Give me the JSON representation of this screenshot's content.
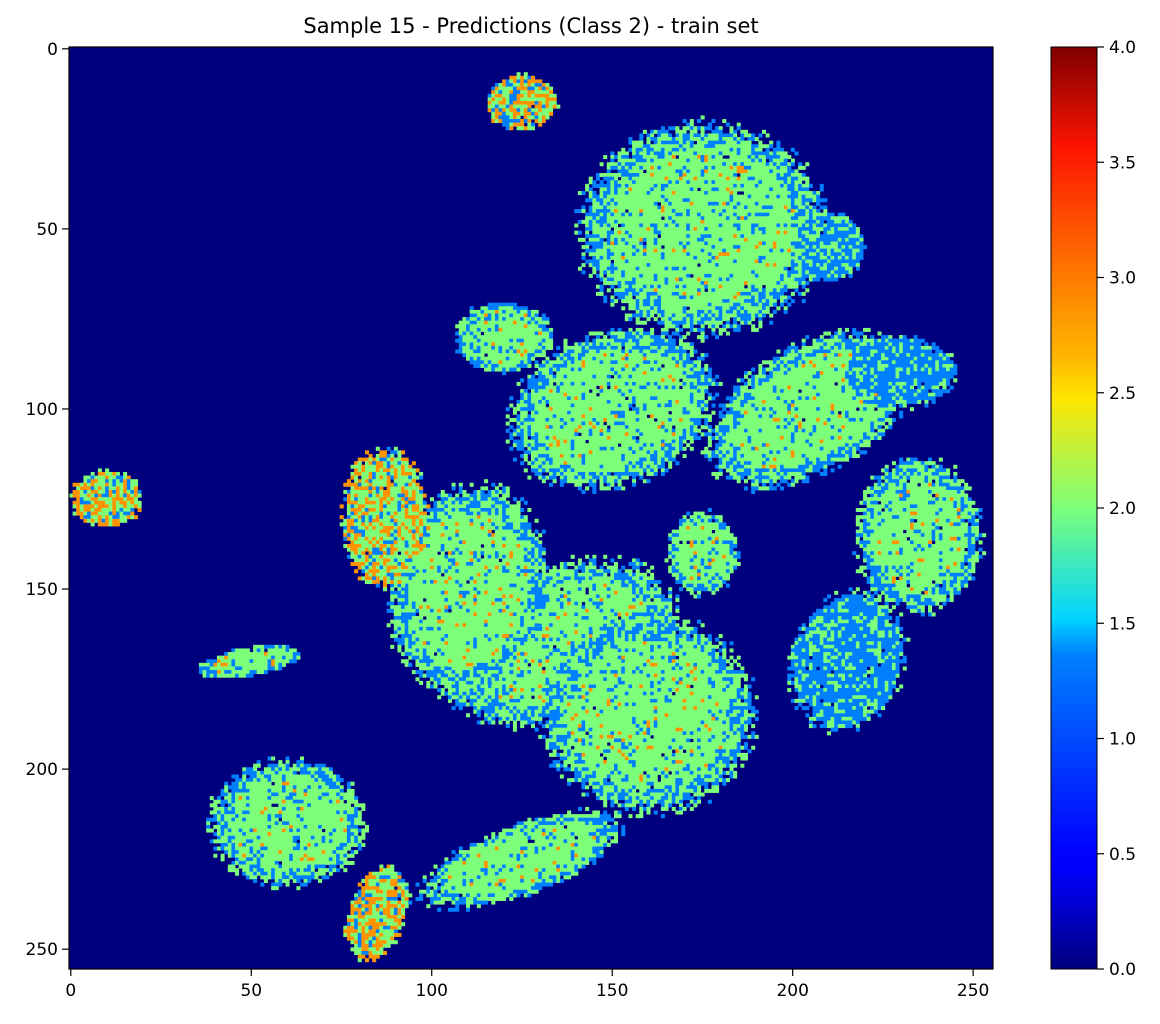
{
  "chart_data": {
    "type": "heatmap",
    "title": "Sample 15 - Predictions (Class 2) - train set",
    "xlabel": "",
    "ylabel": "",
    "grid_size": [
      256,
      256
    ],
    "xlim": [
      0,
      255
    ],
    "ylim": [
      255,
      0
    ],
    "x_ticks": [
      0,
      50,
      100,
      150,
      200,
      250
    ],
    "y_ticks": [
      0,
      50,
      100,
      150,
      200,
      250
    ],
    "grid": false,
    "colorbar": {
      "colormap": "jet",
      "range": [
        0.0,
        4.0
      ],
      "ticks": [
        "0.0",
        "0.5",
        "1.0",
        "1.5",
        "2.0",
        "2.5",
        "3.0",
        "3.5",
        "4.0"
      ],
      "placement": "right"
    },
    "class_colors": {
      "0": "#00007f",
      "1": "#0080ff",
      "2": "#7dff7a",
      "3": "#ff9400",
      "4": "#7f0000"
    },
    "class_values": [
      0,
      1,
      2,
      3
    ],
    "regions": [
      {
        "shape": "ellipse",
        "center": [
          175,
          50
        ],
        "radii": [
          35,
          30
        ],
        "class": 2,
        "angle": 0
      },
      {
        "shape": "ellipse",
        "center": [
          150,
          100
        ],
        "radii": [
          30,
          22
        ],
        "class": 2,
        "angle": -20
      },
      {
        "shape": "ellipse",
        "center": [
          205,
          100
        ],
        "radii": [
          32,
          18
        ],
        "class": 2,
        "angle": -30
      },
      {
        "shape": "ellipse",
        "center": [
          135,
          165
        ],
        "radii": [
          35,
          22
        ],
        "class": 2,
        "angle": -20
      },
      {
        "shape": "ellipse",
        "center": [
          160,
          185
        ],
        "radii": [
          30,
          28
        ],
        "class": 2,
        "angle": 0
      },
      {
        "shape": "ellipse",
        "center": [
          110,
          150
        ],
        "radii": [
          22,
          30
        ],
        "class": 2,
        "angle": 10
      },
      {
        "shape": "ellipse",
        "center": [
          60,
          215
        ],
        "radii": [
          22,
          18
        ],
        "class": 2,
        "angle": 0
      },
      {
        "shape": "ellipse",
        "center": [
          235,
          135
        ],
        "radii": [
          18,
          22
        ],
        "class": 2,
        "angle": 0
      },
      {
        "shape": "ellipse",
        "center": [
          175,
          140
        ],
        "radii": [
          10,
          12
        ],
        "class": 2,
        "angle": 0
      },
      {
        "shape": "ellipse",
        "center": [
          215,
          170
        ],
        "radii": [
          16,
          20
        ],
        "class": 1,
        "angle": 20
      },
      {
        "shape": "ellipse",
        "center": [
          125,
          225
        ],
        "radii": [
          30,
          10
        ],
        "class": 2,
        "angle": -20
      },
      {
        "shape": "ellipse",
        "center": [
          87,
          130
        ],
        "radii": [
          12,
          20
        ],
        "class": 3,
        "angle": 0
      },
      {
        "shape": "ellipse",
        "center": [
          120,
          80
        ],
        "radii": [
          14,
          10
        ],
        "class": 2,
        "angle": 0
      },
      {
        "shape": "ellipse",
        "center": [
          210,
          55
        ],
        "radii": [
          10,
          10
        ],
        "class": 1,
        "angle": 0
      },
      {
        "shape": "ellipse",
        "center": [
          230,
          90
        ],
        "radii": [
          16,
          10
        ],
        "class": 1,
        "angle": 0
      },
      {
        "shape": "ellipse",
        "center": [
          185,
          260
        ],
        "radii": [
          0,
          0
        ],
        "class": 0,
        "angle": 0
      },
      {
        "shape": "ellipse",
        "center": [
          10,
          125
        ],
        "radii": [
          10,
          8
        ],
        "class": 3,
        "angle": 0
      },
      {
        "shape": "ellipse",
        "center": [
          50,
          170
        ],
        "radii": [
          15,
          4
        ],
        "class": 2,
        "angle": -10
      },
      {
        "shape": "ellipse",
        "center": [
          85,
          240
        ],
        "radii": [
          8,
          14
        ],
        "class": 3,
        "angle": 20
      },
      {
        "shape": "ellipse",
        "center": [
          125,
          15
        ],
        "radii": [
          10,
          8
        ],
        "class": 3,
        "angle": 0
      }
    ]
  }
}
